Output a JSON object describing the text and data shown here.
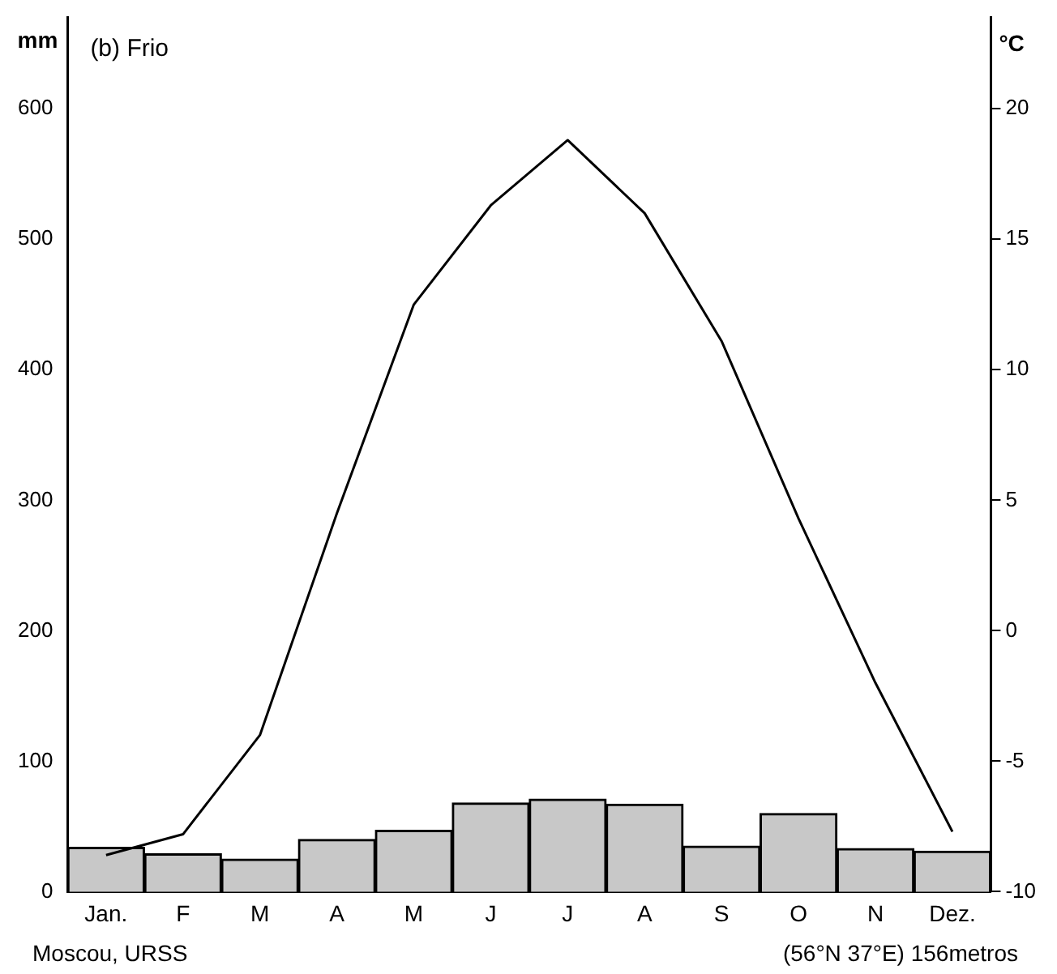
{
  "chart_data": {
    "type": "bar",
    "title": "(b) Frio",
    "ylabel": "mm",
    "y2label": "°C",
    "categories": [
      "Jan.",
      "F",
      "M",
      "A",
      "M",
      "J",
      "J",
      "A",
      "S",
      "O",
      "N",
      "Dez."
    ],
    "series": [
      {
        "color": "#c8c8c8",
        "values": [
          34,
          29,
          25,
          40,
          47,
          68,
          71,
          67,
          35,
          60,
          33,
          31
        ]
      },
      {
        "type": "line",
        "axis": "y2",
        "color": "#000000",
        "values": [
          -8.6,
          -7.8,
          -4.0,
          4.5,
          12.5,
          16.3,
          18.8,
          16.0,
          11.1,
          4.3,
          -2.0,
          -7.7
        ]
      }
    ],
    "ylim": [
      0,
      670
    ],
    "yticks": [
      0,
      100,
      200,
      300,
      400,
      500,
      600
    ],
    "y2lim": [
      -10,
      23.5
    ],
    "y2ticks": [
      -10,
      -5,
      0,
      5,
      10,
      15,
      20
    ],
    "grid": false,
    "legend": false,
    "marker": "none",
    "line_style": "solid",
    "annotations": [
      "Moscou, URSS",
      "(56°N 37°E) 156metros"
    ]
  }
}
